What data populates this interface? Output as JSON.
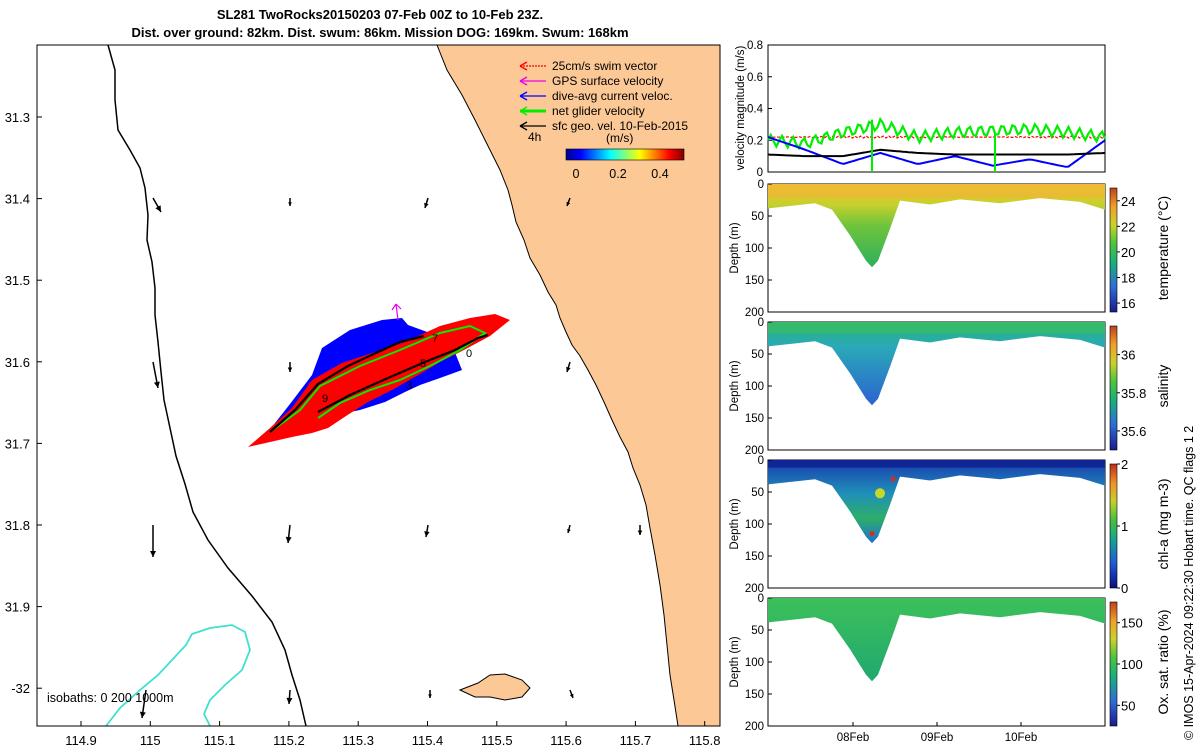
{
  "header": {
    "title_line1": "SL281 TwoRocks20150203 07-Feb 00Z to 10-Feb 23Z.",
    "title_line2": "Dist. over ground: 82km. Dist. swum: 86km. Mission DOG: 169km. Swum: 168km"
  },
  "stamp": "© IMOS 15-Apr-2024 09:22:30 Hobart time. QC flags 1  2",
  "colors": {
    "land": "#fcc996",
    "swim": "#ff0000",
    "gps": "#ee00ee",
    "dive_avg": "#0000ff",
    "net": "#00ee00",
    "geo": "#000000",
    "isobath_200": "#40e0d0",
    "isobath_1000": "#000000"
  },
  "chart_data": [
    {
      "type": "map",
      "xticks": [
        "114.9",
        "115",
        "115.1",
        "115.2",
        "115.3",
        "115.4",
        "115.5",
        "115.6",
        "115.7",
        "115.8"
      ],
      "yticks": [
        "31.3",
        "31.4",
        "31.5",
        "31.6",
        "31.7",
        "31.8",
        "31.9",
        "-32"
      ],
      "legend": {
        "entries": [
          "25cm/s swim vector",
          "GPS surface velocity",
          "dive-avg current veloc.",
          "net glider velocity",
          "sfc geo. vel. 10-Feb-2015"
        ],
        "placement": "top-right",
        "interval_label": "4h",
        "colorbar_unit": "(m/s)",
        "colorbar_ticks": [
          "0",
          "0.2",
          "0.4"
        ]
      },
      "isobath_label": "isobaths: 0   200  1000m",
      "day_markers": [
        "7",
        "9",
        "0",
        "3",
        "5"
      ]
    },
    {
      "type": "line",
      "ylabel": "velocity magnitude (m/s)",
      "ylim": [
        0,
        0.8
      ],
      "yticks": [
        "0",
        "0.2",
        "0.4",
        "0.6",
        "0.8"
      ],
      "x": [
        "07-Feb 00Z",
        "07-Feb 12Z",
        "08-Feb 00Z",
        "08-Feb 06Z",
        "08-Feb 12Z",
        "09-Feb 00Z",
        "09-Feb 12Z",
        "10-Feb 00Z",
        "10-Feb 12Z",
        "10-Feb 23Z"
      ],
      "series": [
        {
          "values": [
            0.22,
            0.22,
            0.22,
            0.22,
            0.22,
            0.22,
            0.22,
            0.22,
            0.22,
            0.22
          ]
        },
        {
          "values": [
            0.2,
            0.18,
            0.25,
            0.3,
            0.22,
            0.25,
            0.26,
            0.27,
            0.25,
            0.22
          ]
        },
        {
          "values": [
            0.22,
            0.14,
            0.05,
            0.12,
            0.05,
            0.1,
            0.04,
            0.08,
            0.03,
            0.2
          ]
        },
        {
          "values": [
            0.11,
            0.1,
            0.1,
            0.14,
            0.12,
            0.11,
            0.11,
            0.11,
            0.11,
            0.12
          ]
        }
      ],
      "xticks": [
        "08Feb",
        "09Feb",
        "10Feb"
      ]
    },
    {
      "type": "heatmap",
      "ylabel": "Depth (m)",
      "yticks": [
        "0",
        "50",
        "100",
        "150",
        "200"
      ],
      "ylim": [
        200,
        0
      ],
      "colorbar_label": "temperature (°C)",
      "colorbar_ticks": [
        "16",
        "18",
        "20",
        "22",
        "24"
      ],
      "range": [
        15.3,
        25
      ],
      "surface_value": 23.5,
      "deep_value": 18.5,
      "max_depth_m": 130
    },
    {
      "type": "heatmap",
      "ylabel": "Depth (m)",
      "yticks": [
        "0",
        "50",
        "100",
        "150",
        "200"
      ],
      "ylim": [
        200,
        0
      ],
      "colorbar_label": "salinity",
      "colorbar_ticks": [
        "35.6",
        "35.8",
        "36"
      ],
      "range": [
        35.5,
        36.15
      ],
      "surface_value": 35.75,
      "deep_value": 35.65,
      "max_depth_m": 130
    },
    {
      "type": "heatmap",
      "ylabel": "Depth (m)",
      "yticks": [
        "0",
        "50",
        "100",
        "150",
        "200"
      ],
      "ylim": [
        200,
        0
      ],
      "colorbar_label": "chl-a (mg m-3)",
      "colorbar_ticks": [
        "0",
        "1",
        "2"
      ],
      "range": [
        0,
        2
      ],
      "surface_value": 0.3,
      "deep_value": 0.6,
      "max_depth_m": 130
    },
    {
      "type": "heatmap",
      "ylabel": "Depth (m)",
      "yticks": [
        "0",
        "50",
        "100",
        "150",
        "200"
      ],
      "ylim": [
        200,
        0
      ],
      "colorbar_label": "Ox. sat. ratio (%)",
      "colorbar_ticks": [
        "50",
        "100",
        "150"
      ],
      "range": [
        25,
        175
      ],
      "surface_value": 110,
      "deep_value": 108,
      "max_depth_m": 130
    }
  ]
}
